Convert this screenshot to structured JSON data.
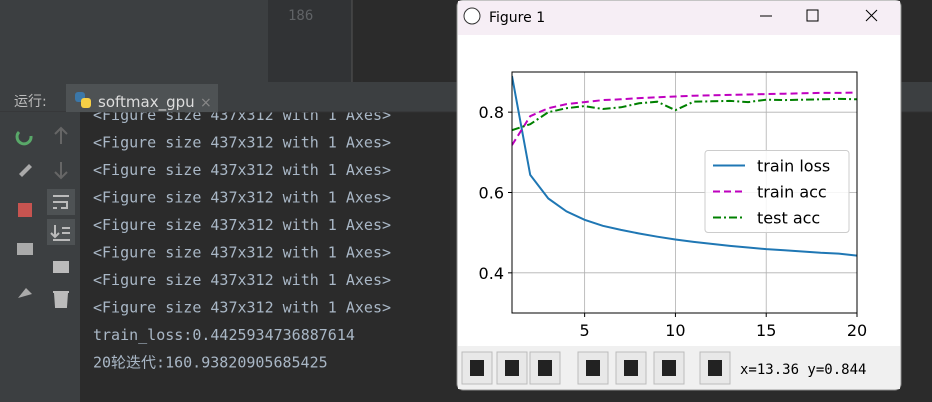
{
  "editor": {
    "line_number": "186"
  },
  "run_panel": {
    "label": "运行:",
    "tab": "softmax_gpu"
  },
  "console": {
    "lines": [
      "<Figure size 437x312 with 1 Axes>",
      "<Figure size 437x312 with 1 Axes>",
      "<Figure size 437x312 with 1 Axes>",
      "<Figure size 437x312 with 1 Axes>",
      "<Figure size 437x312 with 1 Axes>",
      "<Figure size 437x312 with 1 Axes>",
      "<Figure size 437x312 with 1 Axes>",
      "<Figure size 437x312 with 1 Axes>",
      "train_loss:0.4425934736887614",
      "20轮迭代:160.93820905685425"
    ]
  },
  "figure_window": {
    "title": "Figure 1",
    "status": "x=13.36 y=0.844"
  },
  "chart_data": {
    "type": "line",
    "x": [
      1,
      2,
      3,
      4,
      5,
      6,
      7,
      8,
      9,
      10,
      11,
      12,
      13,
      14,
      15,
      16,
      17,
      18,
      19,
      20
    ],
    "series": [
      {
        "name": "train loss",
        "color": "#1f77b4",
        "dash": "solid",
        "values": [
          0.89,
          0.644,
          0.585,
          0.553,
          0.532,
          0.517,
          0.507,
          0.498,
          0.49,
          0.483,
          0.477,
          0.472,
          0.467,
          0.463,
          0.459,
          0.456,
          0.453,
          0.45,
          0.448,
          0.443
        ]
      },
      {
        "name": "train acc",
        "color": "#bf00bf",
        "dash": "dashed",
        "values": [
          0.718,
          0.79,
          0.81,
          0.82,
          0.825,
          0.83,
          0.832,
          0.835,
          0.837,
          0.839,
          0.841,
          0.842,
          0.843,
          0.844,
          0.845,
          0.846,
          0.847,
          0.848,
          0.848,
          0.849
        ]
      },
      {
        "name": "test acc",
        "color": "#008000",
        "dash": "dashdot",
        "values": [
          0.755,
          0.77,
          0.8,
          0.81,
          0.815,
          0.808,
          0.812,
          0.822,
          0.826,
          0.805,
          0.826,
          0.827,
          0.828,
          0.825,
          0.831,
          0.83,
          0.831,
          0.832,
          0.833,
          0.832
        ]
      }
    ],
    "xlim": [
      1,
      20
    ],
    "ylim": [
      0.3,
      0.9
    ],
    "xticks": [
      5,
      10,
      15,
      20
    ],
    "yticks": [
      0.4,
      0.6,
      0.8
    ],
    "grid": true,
    "legend": "center right"
  }
}
